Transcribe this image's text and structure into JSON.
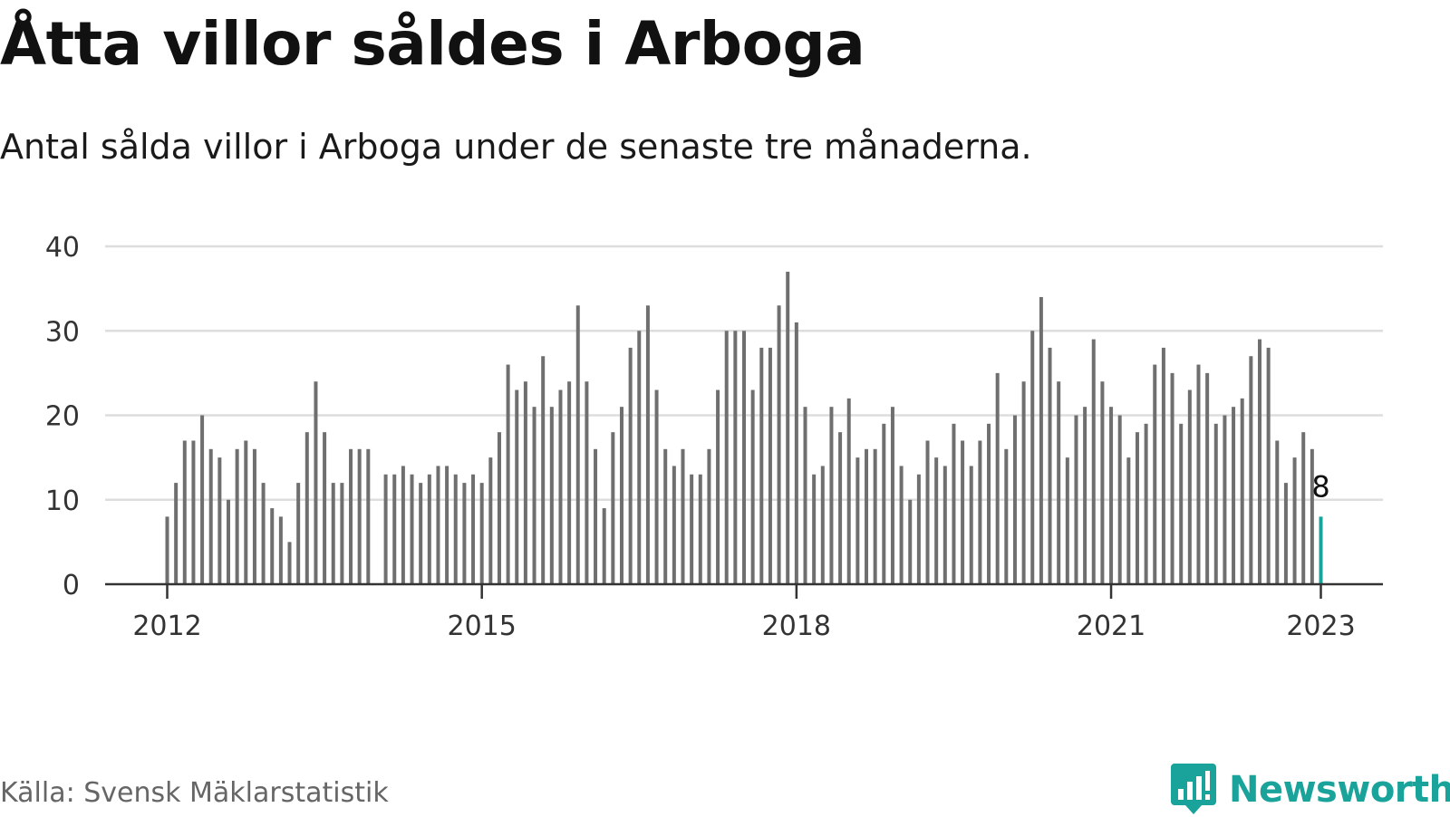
{
  "header": {
    "title": "Åtta villor såldes i Arboga",
    "subtitle": "Antal sålda villor i Arboga under de senaste tre månaderna."
  },
  "footer": {
    "source": "Källa: Svensk Mäklarstatistik",
    "brand": "Newsworthy",
    "brand_icon": "newsworthy-chart-bubble-icon"
  },
  "colors": {
    "bar": "#6f6f6f",
    "highlight": "#1aa39a",
    "grid": "#dddddd",
    "axis": "#333333",
    "brand": "#1aa39a"
  },
  "chart_data": {
    "type": "bar",
    "x_start": "2012-01",
    "x_end": "2023-01",
    "frequency": "monthly",
    "values": [
      8,
      12,
      17,
      17,
      20,
      16,
      15,
      10,
      16,
      17,
      16,
      12,
      9,
      8,
      5,
      12,
      18,
      24,
      18,
      12,
      12,
      16,
      16,
      16,
      null,
      13,
      13,
      14,
      13,
      12,
      13,
      14,
      14,
      13,
      12,
      13,
      12,
      15,
      18,
      26,
      23,
      24,
      21,
      27,
      21,
      23,
      24,
      33,
      24,
      16,
      9,
      18,
      21,
      28,
      30,
      33,
      23,
      16,
      14,
      16,
      13,
      13,
      16,
      23,
      30,
      30,
      30,
      23,
      28,
      28,
      33,
      37,
      31,
      21,
      13,
      14,
      21,
      18,
      22,
      15,
      16,
      16,
      19,
      21,
      14,
      10,
      13,
      17,
      15,
      14,
      19,
      17,
      14,
      17,
      19,
      25,
      16,
      20,
      24,
      30,
      34,
      28,
      24,
      15,
      20,
      21,
      29,
      24,
      21,
      20,
      15,
      18,
      19,
      26,
      28,
      25,
      19,
      23,
      26,
      25,
      19,
      20,
      21,
      22,
      27,
      29,
      28,
      17,
      12,
      15,
      18,
      16,
      8
    ],
    "highlight": {
      "index": 132,
      "label": "8"
    },
    "yticks": [
      0,
      10,
      20,
      30,
      40
    ],
    "ytick_labels": [
      "0",
      "10",
      "20",
      "30",
      "40"
    ],
    "xticks": [
      "2012",
      "2015",
      "2018",
      "2021",
      "2023"
    ],
    "xtick_positions": [
      "2012-01",
      "2015-01",
      "2018-01",
      "2021-01",
      "2023-01"
    ],
    "ylim": [
      0,
      40
    ],
    "grid": true,
    "legend": "none",
    "xlabel": "",
    "ylabel": ""
  }
}
